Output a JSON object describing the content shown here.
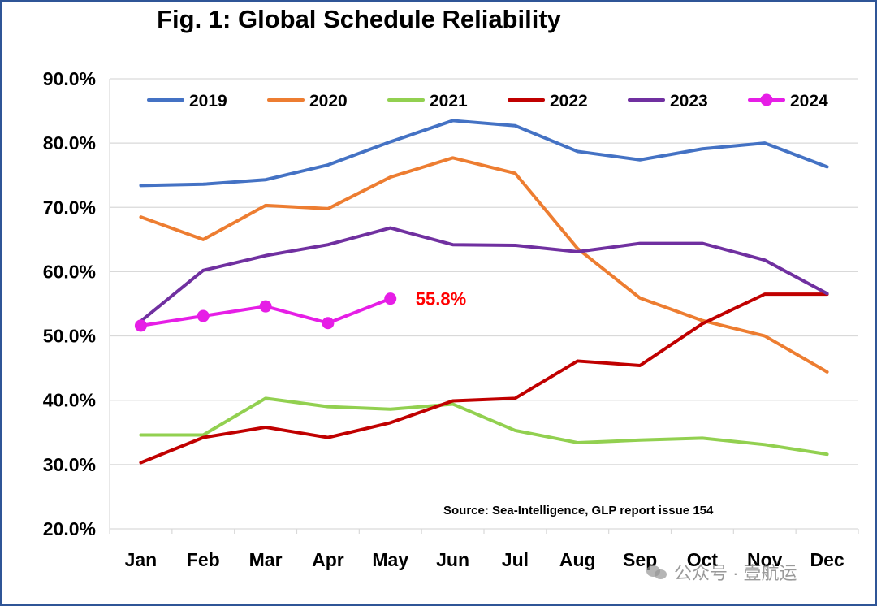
{
  "chart_data": {
    "type": "line",
    "title": "Fig. 1: Global Schedule Reliability",
    "categories": [
      "Jan",
      "Feb",
      "Mar",
      "Apr",
      "May",
      "Jun",
      "Jul",
      "Aug",
      "Sep",
      "Oct",
      "Nov",
      "Dec"
    ],
    "ylim": [
      20,
      90
    ],
    "yticks": [
      20,
      30,
      40,
      50,
      60,
      70,
      80,
      90
    ],
    "ytick_labels": [
      "20.0%",
      "30.0%",
      "40.0%",
      "50.0%",
      "60.0%",
      "70.0%",
      "80.0%",
      "90.0%"
    ],
    "grid": "horizontal",
    "legend_position": "top",
    "series": [
      {
        "name": "2019",
        "color": "#4472c4",
        "markers": false,
        "values": [
          73.4,
          73.6,
          74.3,
          76.6,
          80.2,
          83.5,
          82.7,
          78.7,
          77.4,
          79.1,
          80.0,
          76.3
        ]
      },
      {
        "name": "2020",
        "color": "#ed7d31",
        "markers": false,
        "values": [
          68.5,
          65.0,
          70.3,
          69.8,
          74.7,
          77.7,
          75.3,
          63.6,
          55.9,
          52.4,
          50.0,
          44.4
        ]
      },
      {
        "name": "2021",
        "color": "#92d050",
        "markers": false,
        "values": [
          34.6,
          34.6,
          40.3,
          39.0,
          38.6,
          39.4,
          35.3,
          33.4,
          33.8,
          34.1,
          33.1,
          31.6
        ]
      },
      {
        "name": "2022",
        "color": "#c00000",
        "markers": false,
        "values": [
          30.3,
          34.2,
          35.8,
          34.2,
          36.5,
          39.9,
          40.3,
          46.1,
          45.4,
          51.9,
          56.5,
          56.5
        ]
      },
      {
        "name": "2023",
        "color": "#7030a0",
        "markers": false,
        "values": [
          52.3,
          60.2,
          62.5,
          64.2,
          66.8,
          64.2,
          64.1,
          63.1,
          64.4,
          64.4,
          61.8,
          56.6
        ]
      },
      {
        "name": "2024",
        "color": "#e61ee6",
        "markers": true,
        "values": [
          51.6,
          53.1,
          54.6,
          52.0,
          55.8,
          null,
          null,
          null,
          null,
          null,
          null,
          null
        ]
      }
    ],
    "annotation": {
      "text": "55.8%",
      "color": "#ff0000",
      "series": "2024",
      "category": "May"
    },
    "source": "Source: Sea-Intelligence, GLP report issue 154"
  },
  "watermark": "公众号 · 壹航运"
}
